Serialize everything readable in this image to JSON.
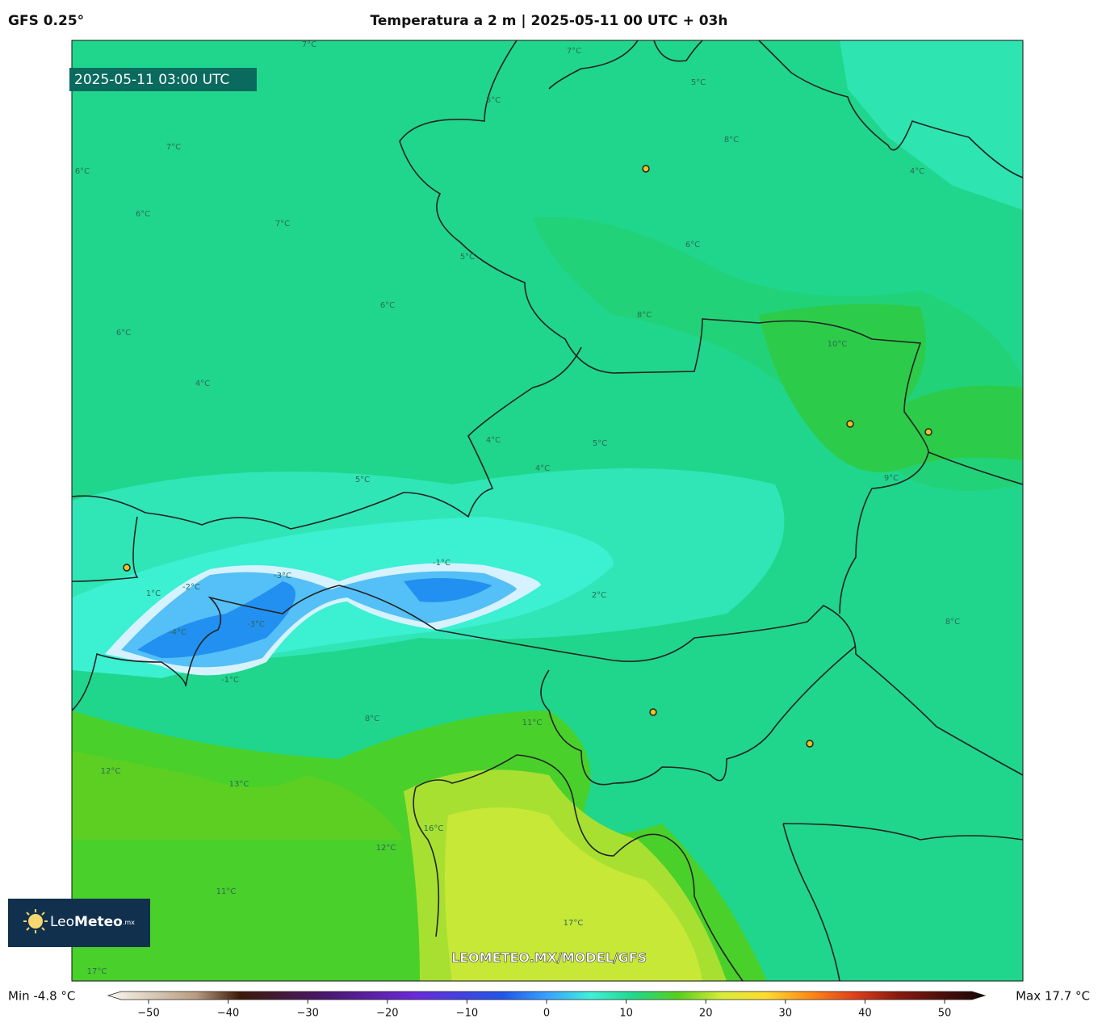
{
  "header": {
    "model": "GFS 0.25°",
    "title": "Temperatura a 2 m | 2025-05-11 00 UTC + 03h"
  },
  "map": {
    "timestamp": "2025-05-11 03:00 UTC",
    "watermark": "LEOMETEO.MX/MODEL/GFS",
    "logo": {
      "brand_light": "Leo",
      "brand_bold": "Meteo",
      "suffix": ".mx"
    },
    "contour_labels": [
      "7°C",
      "7°C",
      "7°C",
      "7°C",
      "6°C",
      "6°C",
      "6°C",
      "6°C",
      "6°C",
      "5°C",
      "5°C",
      "5°C",
      "5°C",
      "5°C",
      "4°C",
      "4°C",
      "4°C",
      "4°C",
      "8°C",
      "8°C",
      "8°C",
      "8°C",
      "-1°C",
      "-1°C",
      "-2°C",
      "-3°C",
      "-3°C",
      "-4°C",
      "1°C",
      "2°C",
      "9°C",
      "10°C",
      "11°C",
      "11°C",
      "12°C",
      "12°C",
      "13°C",
      "16°C",
      "17°C",
      "17°C"
    ]
  },
  "colorbar": {
    "min_label": "Min -4.8 °C",
    "max_label": "Max 17.7 °C",
    "range": [
      -50,
      50
    ],
    "ticks": [
      {
        "value": -50,
        "label": "−50"
      },
      {
        "value": -40,
        "label": "−40"
      },
      {
        "value": -30,
        "label": "−30"
      },
      {
        "value": -20,
        "label": "−20"
      },
      {
        "value": -10,
        "label": "−10"
      },
      0,
      10,
      20,
      30,
      40,
      50
    ]
  }
}
